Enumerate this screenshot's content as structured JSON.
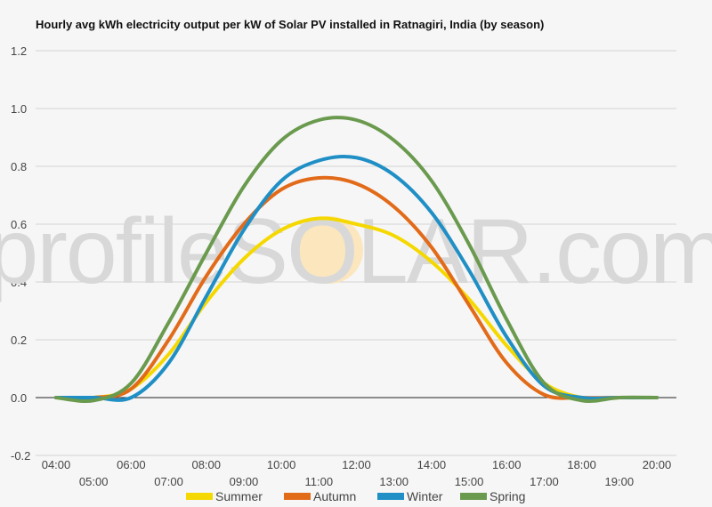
{
  "chart_data": {
    "type": "line",
    "title": "Hourly avg kWh electricity output per kW of Solar PV installed in Ratnagiri, India (by season)",
    "xlabel": "",
    "ylabel": "",
    "watermark": "profileSOLAR.com",
    "ylim": [
      -0.2,
      1.2
    ],
    "yticks": [
      "-0.2",
      "0.0",
      "0.2",
      "0.4",
      "0.6",
      "0.8",
      "1.0",
      "1.2"
    ],
    "x": [
      "04:00",
      "05:00",
      "06:00",
      "07:00",
      "08:00",
      "09:00",
      "10:00",
      "11:00",
      "12:00",
      "13:00",
      "14:00",
      "15:00",
      "16:00",
      "17:00",
      "18:00",
      "19:00",
      "20:00"
    ],
    "grid": true,
    "legend_position": "bottom",
    "series": [
      {
        "name": "Summer",
        "color": "#f5d800",
        "values": [
          0.0,
          0.0,
          0.03,
          0.15,
          0.33,
          0.48,
          0.58,
          0.62,
          0.6,
          0.56,
          0.47,
          0.34,
          0.18,
          0.05,
          0.0,
          0.0,
          0.0
        ]
      },
      {
        "name": "Autumn",
        "color": "#e26b1a",
        "values": [
          0.0,
          0.0,
          0.03,
          0.2,
          0.42,
          0.6,
          0.72,
          0.76,
          0.74,
          0.66,
          0.52,
          0.32,
          0.12,
          0.01,
          0.0,
          0.0,
          0.0
        ]
      },
      {
        "name": "Winter",
        "color": "#1f8fc5",
        "values": [
          0.0,
          0.0,
          0.0,
          0.12,
          0.35,
          0.58,
          0.75,
          0.82,
          0.83,
          0.77,
          0.64,
          0.44,
          0.21,
          0.04,
          0.0,
          0.0,
          0.0
        ]
      },
      {
        "name": "Spring",
        "color": "#6a9a4e",
        "values": [
          0.0,
          -0.01,
          0.05,
          0.26,
          0.5,
          0.73,
          0.89,
          0.96,
          0.96,
          0.89,
          0.75,
          0.53,
          0.27,
          0.05,
          -0.01,
          0.0,
          0.0
        ]
      }
    ]
  }
}
